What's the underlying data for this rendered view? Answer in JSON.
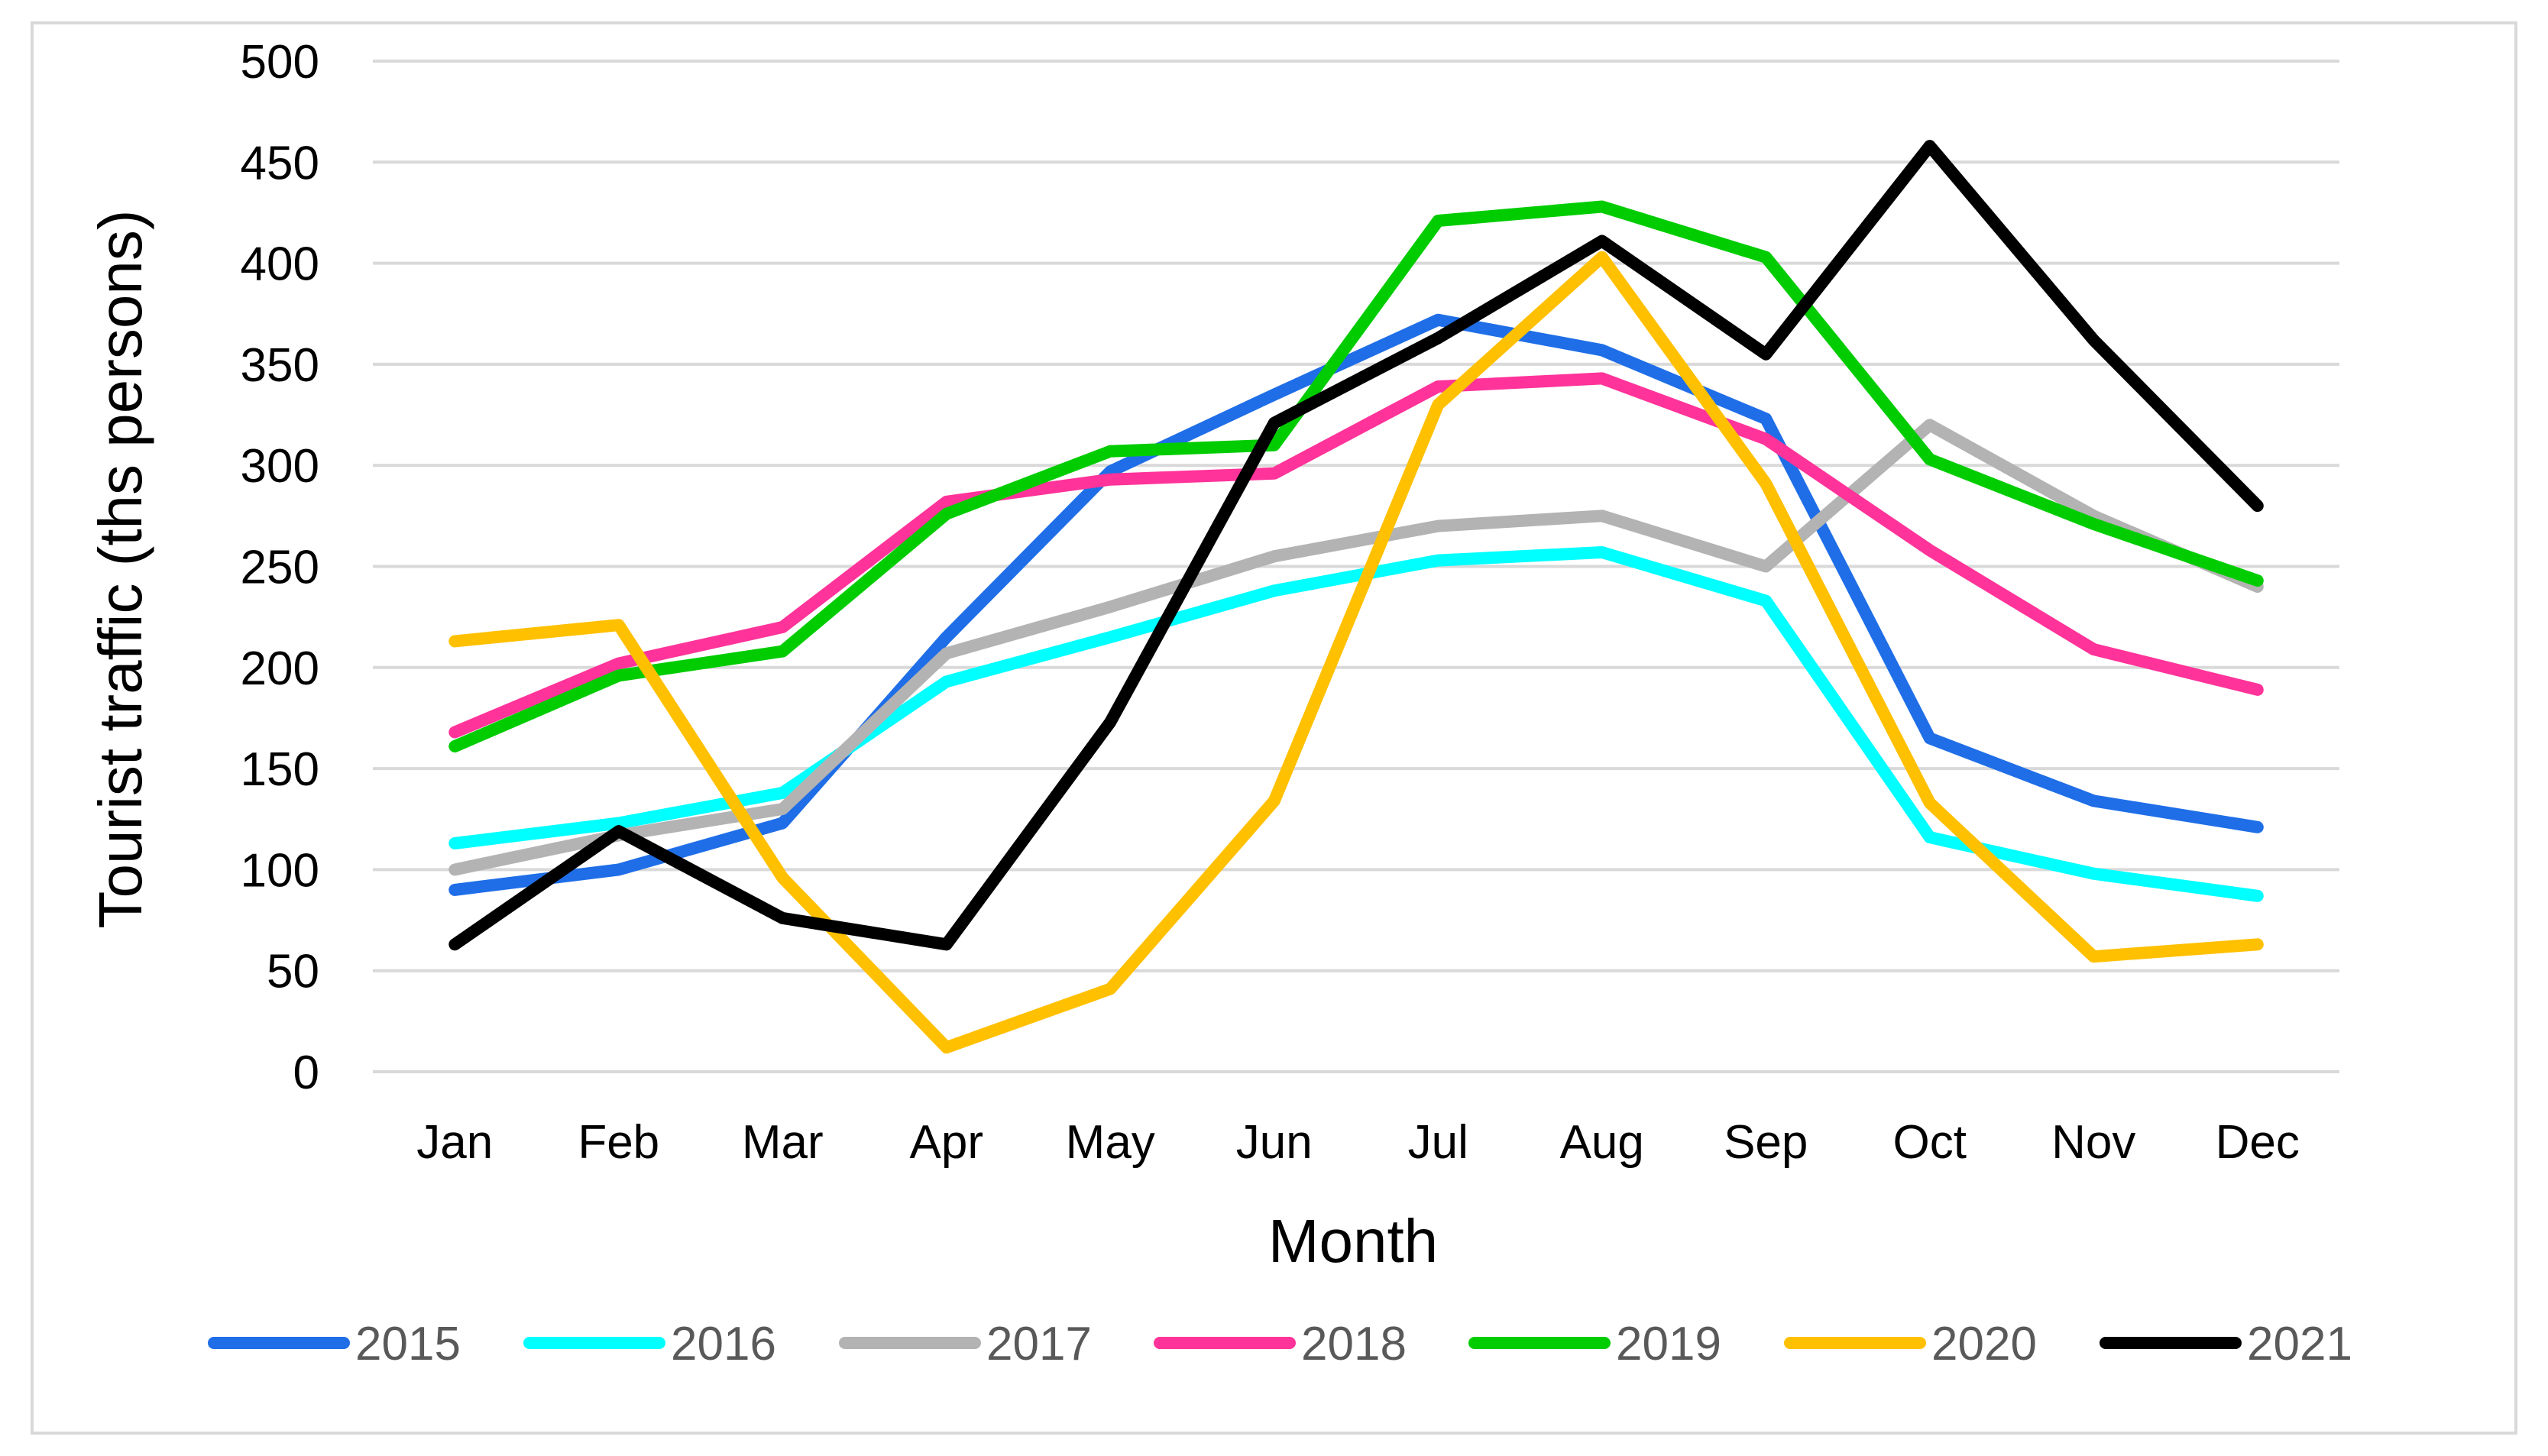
{
  "chart_data": {
    "type": "line",
    "title": "",
    "xlabel": "Month",
    "ylabel": "Tourist traffic (ths persons)",
    "ylim": [
      0,
      500
    ],
    "yticks": [
      0,
      50,
      100,
      150,
      200,
      250,
      300,
      350,
      400,
      450,
      500
    ],
    "grid": true,
    "legend_position": "bottom",
    "categories": [
      "Jan",
      "Feb",
      "Mar",
      "Apr",
      "May",
      "Jun",
      "Jul",
      "Aug",
      "Sep",
      "Oct",
      "Nov",
      "Dec"
    ],
    "series": [
      {
        "name": "2015",
        "color": "#1f6ee8",
        "values": [
          90,
          100,
          123,
          215,
          297,
          335,
          372,
          357,
          323,
          165,
          134,
          121
        ]
      },
      {
        "name": "2016",
        "color": "#00ffff",
        "values": [
          113,
          123,
          138,
          193,
          215,
          238,
          253,
          257,
          233,
          116,
          98,
          87
        ]
      },
      {
        "name": "2017",
        "color": "#b3b3b3",
        "values": [
          100,
          117,
          130,
          207,
          230,
          255,
          270,
          275,
          250,
          320,
          275,
          240
        ]
      },
      {
        "name": "2018",
        "color": "#ff3399",
        "values": [
          168,
          202,
          220,
          282,
          293,
          296,
          339,
          343,
          313,
          258,
          209,
          189
        ]
      },
      {
        "name": "2019",
        "color": "#00cc00",
        "values": [
          161,
          196,
          208,
          276,
          307,
          310,
          421,
          428,
          403,
          303,
          271,
          243
        ]
      },
      {
        "name": "2020",
        "color": "#ffc000",
        "values": [
          213,
          221,
          96,
          12,
          41,
          134,
          330,
          403,
          291,
          133,
          57,
          63
        ]
      },
      {
        "name": "2021",
        "color": "#000000",
        "values": [
          63,
          119,
          76,
          63,
          173,
          321,
          363,
          411,
          355,
          458,
          362,
          280
        ]
      }
    ]
  }
}
